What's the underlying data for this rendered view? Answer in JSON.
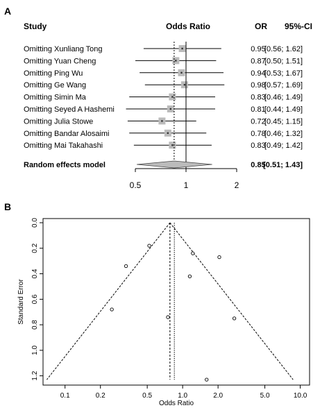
{
  "panel_a_label": "A",
  "panel_b_label": "B",
  "chart_data": [
    {
      "type": "forest",
      "headers": {
        "study": "Study",
        "effect": "Odds Ratio",
        "or": "OR",
        "ci": "95%-CI"
      },
      "studies": [
        {
          "label": "Omitting Xunliang Tong",
          "or": 0.95,
          "lower": 0.56,
          "upper": 1.62,
          "or_text": "0.95",
          "ci_text": "[0.56; 1.62]"
        },
        {
          "label": "Omitting Yuan Cheng",
          "or": 0.87,
          "lower": 0.5,
          "upper": 1.51,
          "or_text": "0.87",
          "ci_text": "[0.50; 1.51]"
        },
        {
          "label": "Omitting Ping Wu",
          "or": 0.94,
          "lower": 0.53,
          "upper": 1.67,
          "or_text": "0.94",
          "ci_text": "[0.53; 1.67]"
        },
        {
          "label": "Omitting Ge Wang",
          "or": 0.98,
          "lower": 0.57,
          "upper": 1.69,
          "or_text": "0.98",
          "ci_text": "[0.57; 1.69]"
        },
        {
          "label": "Omitting Simin Ma",
          "or": 0.83,
          "lower": 0.46,
          "upper": 1.49,
          "or_text": "0.83",
          "ci_text": "[0.46; 1.49]"
        },
        {
          "label": "Omitting Seyed A Hashemi",
          "or": 0.81,
          "lower": 0.44,
          "upper": 1.49,
          "or_text": "0.81",
          "ci_text": "[0.44; 1.49]"
        },
        {
          "label": "Omitting Julia Stowe",
          "or": 0.72,
          "lower": 0.45,
          "upper": 1.15,
          "or_text": "0.72",
          "ci_text": "[0.45; 1.15]"
        },
        {
          "label": "Omitting Bandar Alosaimi",
          "or": 0.78,
          "lower": 0.46,
          "upper": 1.32,
          "or_text": "0.78",
          "ci_text": "[0.46; 1.32]"
        },
        {
          "label": "Omitting Mai Takahashi",
          "or": 0.83,
          "lower": 0.49,
          "upper": 1.42,
          "or_text": "0.83",
          "ci_text": "[0.49; 1.42]"
        }
      ],
      "pooled": {
        "label": "Random effects model",
        "or": 0.85,
        "lower": 0.51,
        "upper": 1.43,
        "or_text": "0.85",
        "ci_text": "[0.51; 1.43]"
      },
      "x_ticks": [
        0.5,
        1,
        2
      ],
      "x_tick_labels": [
        "0.5",
        "1",
        "2"
      ],
      "xlim": [
        0.5,
        2
      ],
      "x_scale": "log",
      "reference_line": 1
    },
    {
      "type": "scatter",
      "subtype": "funnel",
      "xlabel": "Odds Ratio",
      "ylabel": "Standard Error",
      "x_scale": "log",
      "xlim": [
        0.065,
        12
      ],
      "ylim": [
        1.24,
        0
      ],
      "y_reversed": true,
      "x_ticks": [
        0.1,
        0.2,
        0.5,
        1.0,
        2.0,
        5.0,
        10.0
      ],
      "x_tick_labels": [
        "0.1",
        "0.2",
        "0.5",
        "1.0",
        "2.0",
        "5.0",
        "10.0"
      ],
      "y_ticks": [
        0.0,
        0.2,
        0.4,
        0.6,
        0.8,
        1.0,
        1.2
      ],
      "y_tick_labels": [
        "0.0",
        "0.2",
        "0.4",
        "0.6",
        "0.8",
        "1.0",
        "1.2"
      ],
      "pooled_or_fixed": 0.78,
      "pooled_or_random": 0.85,
      "points": [
        {
          "x": 0.52,
          "y": 0.18
        },
        {
          "x": 0.33,
          "y": 0.34
        },
        {
          "x": 1.22,
          "y": 0.24
        },
        {
          "x": 2.05,
          "y": 0.27
        },
        {
          "x": 1.15,
          "y": 0.42
        },
        {
          "x": 0.25,
          "y": 0.68
        },
        {
          "x": 0.75,
          "y": 0.74
        },
        {
          "x": 2.75,
          "y": 0.75
        },
        {
          "x": 1.6,
          "y": 1.23
        }
      ]
    }
  ]
}
